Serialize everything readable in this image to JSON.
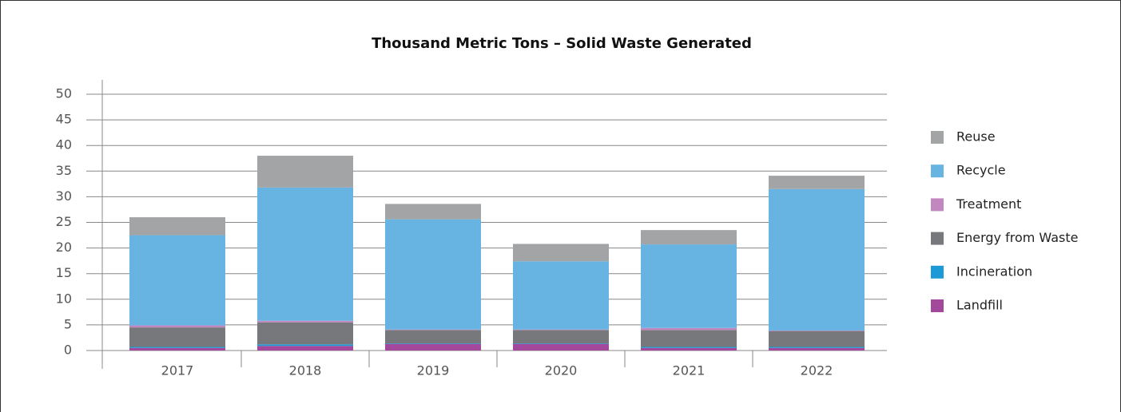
{
  "chart_data": {
    "type": "stacked_bar",
    "title": "Thousand Metric Tons – Solid Waste Generated",
    "categories": [
      "2017",
      "2018",
      "2019",
      "2020",
      "2021",
      "2022"
    ],
    "series": [
      {
        "name": "Landfill",
        "color": "#a3489a",
        "values": [
          0.5,
          0.9,
          1.3,
          1.3,
          0.5,
          0.5
        ]
      },
      {
        "name": "Incineration",
        "color": "#1b9ad7",
        "values": [
          0.2,
          0.3,
          0.1,
          0.1,
          0.2,
          0.2
        ]
      },
      {
        "name": "Energy from Waste",
        "color": "#77787b",
        "values": [
          3.8,
          4.3,
          2.6,
          2.6,
          3.3,
          3.1
        ]
      },
      {
        "name": "Treatment",
        "color": "#c387c0",
        "values": [
          0.4,
          0.3,
          0.1,
          0.1,
          0.4,
          0.1
        ]
      },
      {
        "name": "Recycle",
        "color": "#67b4e3",
        "values": [
          17.6,
          26.0,
          21.5,
          13.3,
          16.3,
          27.6
        ]
      },
      {
        "name": "Reuse",
        "color": "#a2a4a6",
        "values": [
          3.5,
          6.2,
          3.0,
          3.4,
          2.8,
          2.6
        ]
      }
    ],
    "ylim": [
      0,
      50
    ],
    "yticks": [
      0,
      5,
      10,
      15,
      20,
      25,
      30,
      35,
      40,
      45,
      50
    ],
    "grid": true,
    "legend": "right"
  }
}
